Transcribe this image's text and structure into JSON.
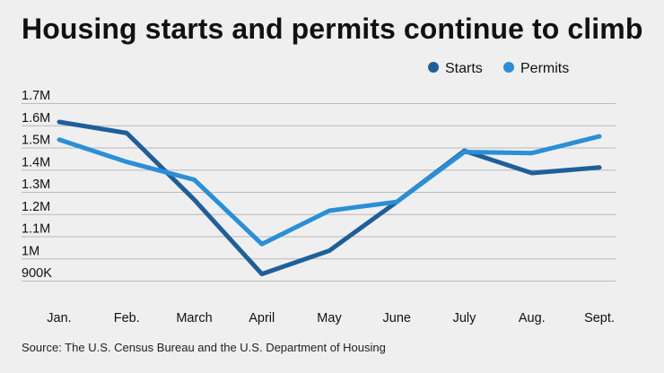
{
  "chart_data": {
    "type": "line",
    "title": "Housing starts and permits continue to climb",
    "categories": [
      "Jan.",
      "Feb.",
      "March",
      "April",
      "May",
      "June",
      "July",
      "Aug.",
      "Sept."
    ],
    "y_ticks": [
      "900K",
      "1M",
      "1.1M",
      "1.2M",
      "1.3M",
      "1.4M",
      "1.5M",
      "1.6M",
      "1.7M"
    ],
    "y_tick_values": [
      900000,
      1000000,
      1100000,
      1200000,
      1300000,
      1400000,
      1500000,
      1600000,
      1700000
    ],
    "ylim": [
      900000,
      1700000
    ],
    "grid": true,
    "legend_position": "top-right",
    "series": [
      {
        "name": "Starts",
        "color": "#1f5f99",
        "values": [
          1615000,
          1565000,
          1265000,
          930000,
          1035000,
          1255000,
          1485000,
          1385000,
          1410000
        ]
      },
      {
        "name": "Permits",
        "color": "#2a8fd6",
        "values": [
          1535000,
          1435000,
          1355000,
          1065000,
          1215000,
          1255000,
          1480000,
          1475000,
          1550000
        ]
      }
    ],
    "source": "Source: The U.S. Census Bureau and the U.S. Department of Housing"
  }
}
